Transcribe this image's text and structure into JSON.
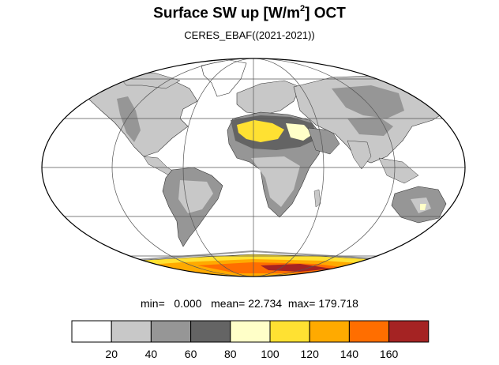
{
  "title": {
    "prefix": "Surface SW up [W/m",
    "superscript": "2",
    "suffix": "]  OCT"
  },
  "subtitle": "CERES_EBAF((2021-2021))",
  "stats": {
    "min_label": "min=",
    "min_value": "0.000",
    "mean_label": "mean=",
    "mean_value": "22.734",
    "max_label": "max=",
    "max_value": "179.718"
  },
  "legend": {
    "colors": [
      "#ffffff",
      "#c8c8c8",
      "#969696",
      "#646464",
      "#ffffc8",
      "#ffe132",
      "#ffaa00",
      "#ff6e00",
      "#a52323"
    ],
    "labels": [
      "20",
      "40",
      "60",
      "80",
      "100",
      "120",
      "140",
      "160"
    ]
  },
  "map": {
    "projection": "mollweide",
    "land_low_color": "#c8c8c8",
    "land_mid_color": "#969696",
    "land_high_color": "#646464",
    "desert_color": "#ffe132",
    "antarctica_colors": [
      "#ffe132",
      "#ffaa00",
      "#ff6e00",
      "#a52323"
    ]
  }
}
